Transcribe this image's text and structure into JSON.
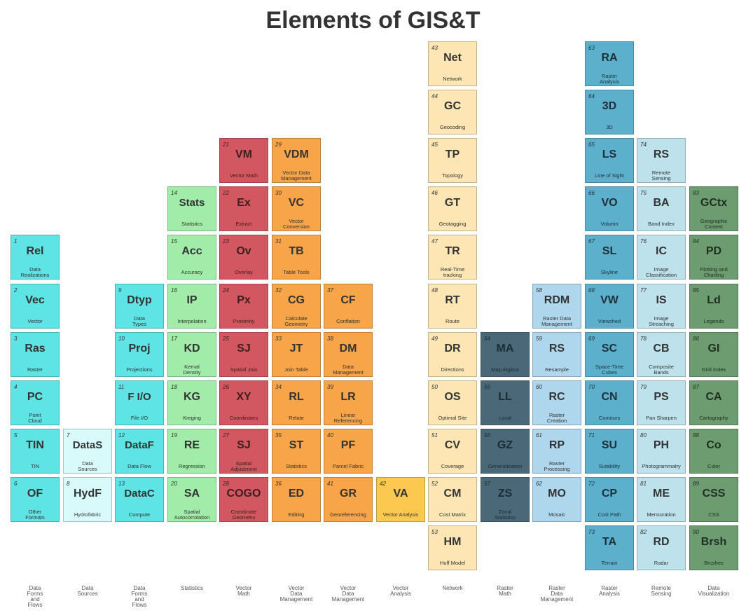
{
  "title": "Elements of GIS&T",
  "columns": [
    {
      "label": "Data\nForms\nand\nFlows",
      "color": "#5ee4e4",
      "text": "#333333",
      "start_row": 4,
      "tiles": [
        {
          "num": "1",
          "sym": "Rel",
          "name": "Data\nRealizations"
        },
        {
          "num": "2",
          "sym": "Vec",
          "name": "Vector"
        },
        {
          "num": "3",
          "sym": "Ras",
          "name": "Raster"
        },
        {
          "num": "4",
          "sym": "PC",
          "name": "Point\nCloud"
        },
        {
          "num": "5",
          "sym": "TIN",
          "name": "TIN"
        },
        {
          "num": "6",
          "sym": "OF",
          "name": "Other\nFormats"
        }
      ]
    },
    {
      "label": "Data\nSources",
      "color": "#d9fafa",
      "text": "#333333",
      "start_row": 8,
      "tiles": [
        {
          "num": "7",
          "sym": "DataS",
          "name": "Data\nSources"
        },
        {
          "num": "8",
          "sym": "HydF",
          "name": "Hydrofabric"
        }
      ]
    },
    {
      "label": "Data\nForms\nand\nFlows",
      "color": "#5ee4e4",
      "text": "#333333",
      "start_row": 5,
      "tiles": [
        {
          "num": "9",
          "sym": "Dtyp",
          "name": "Data\nTypes"
        },
        {
          "num": "10",
          "sym": "Proj",
          "name": "Projections"
        },
        {
          "num": "11",
          "sym": "F I/O",
          "name": "File I/O"
        },
        {
          "num": "12",
          "sym": "DataF",
          "name": "Data Flow"
        },
        {
          "num": "13",
          "sym": "DataC",
          "name": "Compute"
        }
      ]
    },
    {
      "label": "Statistics",
      "color": "#a0eca8",
      "text": "#333333",
      "start_row": 3,
      "tiles": [
        {
          "num": "14",
          "sym": "Stats",
          "name": "Statistics"
        },
        {
          "num": "15",
          "sym": "Acc",
          "name": "Accuracy"
        },
        {
          "num": "16",
          "sym": "IP",
          "name": "Interpolation"
        },
        {
          "num": "17",
          "sym": "KD",
          "name": "Kernal\nDensity"
        },
        {
          "num": "18",
          "sym": "KG",
          "name": "Kreging"
        },
        {
          "num": "19",
          "sym": "RE",
          "name": "Regression"
        },
        {
          "num": "20",
          "sym": "SA",
          "name": "Spatial\nAutocorrolation"
        }
      ]
    },
    {
      "label": "Vector\nMath",
      "color": "#d35760",
      "text": "#3a2020",
      "start_row": 2,
      "tiles": [
        {
          "num": "21",
          "sym": "VM",
          "name": "Vector Math"
        },
        {
          "num": "22",
          "sym": "Ex",
          "name": "Extract"
        },
        {
          "num": "23",
          "sym": "Ov",
          "name": "Overlay"
        },
        {
          "num": "24",
          "sym": "Px",
          "name": "Proximity"
        },
        {
          "num": "25",
          "sym": "SJ",
          "name": "Spatial Join"
        },
        {
          "num": "26",
          "sym": "XY",
          "name": "Coordinates"
        },
        {
          "num": "27",
          "sym": "SJ",
          "name": "Spatial\nAdjustment"
        },
        {
          "num": "28",
          "sym": "COGO",
          "name": "Coordinate\nGeometry"
        }
      ]
    },
    {
      "label": "Vector\nData\nManagement",
      "color": "#f8a448",
      "text": "#333333",
      "start_row": 2,
      "tiles": [
        {
          "num": "29",
          "sym": "VDM",
          "name": "Vector Data\nManagement"
        },
        {
          "num": "30",
          "sym": "VC",
          "name": "Vector\nConversion"
        },
        {
          "num": "31",
          "sym": "TB",
          "name": "Table Tools"
        },
        {
          "num": "32",
          "sym": "CG",
          "name": "Calculate\nGeometry"
        },
        {
          "num": "33",
          "sym": "JT",
          "name": "Join Table"
        },
        {
          "num": "34",
          "sym": "RL",
          "name": "Relate"
        },
        {
          "num": "35",
          "sym": "ST",
          "name": "Statistics"
        },
        {
          "num": "36",
          "sym": "ED",
          "name": "Editing"
        }
      ]
    },
    {
      "label": "Vector\nData\nManagement",
      "color": "#f8a448",
      "text": "#333333",
      "start_row": 5,
      "tiles": [
        {
          "num": "37",
          "sym": "CF",
          "name": "Conflation"
        },
        {
          "num": "38",
          "sym": "DM",
          "name": "Data\nManagement"
        },
        {
          "num": "39",
          "sym": "LR",
          "name": "Linear\nReferencing"
        },
        {
          "num": "40",
          "sym": "PF",
          "name": "Parcel Fabric"
        },
        {
          "num": "41",
          "sym": "GR",
          "name": "Georeferencing"
        }
      ]
    },
    {
      "label": "Vector\nAnalysis",
      "color": "#fcc850",
      "text": "#333333",
      "start_row": 9,
      "tiles": [
        {
          "num": "42",
          "sym": "VA",
          "name": "Vector Analysis"
        }
      ]
    },
    {
      "label": "Network",
      "color": "#fde6b4",
      "text": "#333333",
      "start_row": 0,
      "tiles": [
        {
          "num": "43",
          "sym": "Net",
          "name": "Network"
        },
        {
          "num": "44",
          "sym": "GC",
          "name": "Geocoding"
        },
        {
          "num": "45",
          "sym": "TP",
          "name": "Topology"
        },
        {
          "num": "46",
          "sym": "GT",
          "name": "Geotagging"
        },
        {
          "num": "47",
          "sym": "TR",
          "name": "Real-Time\ntracking"
        },
        {
          "num": "48",
          "sym": "RT",
          "name": "Route"
        },
        {
          "num": "49",
          "sym": "DR",
          "name": "Directions"
        },
        {
          "num": "50",
          "sym": "OS",
          "name": "Optimal Site"
        },
        {
          "num": "51",
          "sym": "CV",
          "name": "Coverage"
        },
        {
          "num": "52",
          "sym": "CM",
          "name": "Cost Matrix"
        },
        {
          "num": "53",
          "sym": "HM",
          "name": "Huff Model"
        }
      ]
    },
    {
      "label": "Raster\nMath",
      "color": "#4a6878",
      "text": "#1c2c36",
      "start_row": 6,
      "tiles": [
        {
          "num": "54",
          "sym": "MA",
          "name": "Map Algibra"
        },
        {
          "num": "55",
          "sym": "LL",
          "name": "Local"
        },
        {
          "num": "56",
          "sym": "GZ",
          "name": "Generalization"
        },
        {
          "num": "57",
          "sym": "ZS",
          "name": "Zonal\nStatistics"
        }
      ]
    },
    {
      "label": "Raster\nData\nManagement",
      "color": "#aed6ec",
      "text": "#333333",
      "start_row": 5,
      "tiles": [
        {
          "num": "58",
          "sym": "RDM",
          "name": "Raster Data\nManagement"
        },
        {
          "num": "59",
          "sym": "RS",
          "name": "Resample"
        },
        {
          "num": "60",
          "sym": "RC",
          "name": "Raster\nCreation"
        },
        {
          "num": "61",
          "sym": "RP",
          "name": "Raster\nProcessing"
        },
        {
          "num": "62",
          "sym": "MO",
          "name": "Mosaic"
        }
      ]
    },
    {
      "label": "Raster\nAnalysis",
      "color": "#5cb0cc",
      "text": "#1f2f38",
      "start_row": 0,
      "tiles": [
        {
          "num": "63",
          "sym": "RA",
          "name": "Raster\nAnalysis"
        },
        {
          "num": "64",
          "sym": "3D",
          "name": "3D"
        },
        {
          "num": "65",
          "sym": "LS",
          "name": "Line of Sight"
        },
        {
          "num": "66",
          "sym": "VO",
          "name": "Volumn"
        },
        {
          "num": "67",
          "sym": "SL",
          "name": "Skyline"
        },
        {
          "num": "68",
          "sym": "VW",
          "name": "Viewshed"
        },
        {
          "num": "69",
          "sym": "SC",
          "name": "Space-Time\nCubes"
        },
        {
          "num": "70",
          "sym": "CN",
          "name": "Contours"
        },
        {
          "num": "71",
          "sym": "SU",
          "name": "Sutability"
        },
        {
          "num": "72",
          "sym": "CP",
          "name": "Cost Path"
        },
        {
          "num": "73",
          "sym": "TA",
          "name": "Terrain"
        }
      ]
    },
    {
      "label": "Remote\nSensing",
      "color": "#bde2ec",
      "text": "#333333",
      "start_row": 2,
      "tiles": [
        {
          "num": "74",
          "sym": "RS",
          "name": "Remote\nSensing"
        },
        {
          "num": "75",
          "sym": "BA",
          "name": "Band Index"
        },
        {
          "num": "76",
          "sym": "IC",
          "name": "Image\nClassification"
        },
        {
          "num": "77",
          "sym": "IS",
          "name": "Image\nStreaching"
        },
        {
          "num": "78",
          "sym": "CB",
          "name": "Composite\nBands"
        },
        {
          "num": "79",
          "sym": "PS",
          "name": "Pan Sharpen"
        },
        {
          "num": "80",
          "sym": "PH",
          "name": "Photogrammatry"
        },
        {
          "num": "81",
          "sym": "ME",
          "name": "Mensuration"
        },
        {
          "num": "82",
          "sym": "RD",
          "name": "Radar"
        }
      ]
    },
    {
      "label": "Data\nVisualization",
      "color": "#6c9c70",
      "text": "#1e2e20",
      "start_row": 3,
      "tiles": [
        {
          "num": "83",
          "sym": "GCtx",
          "name": "Geographic\nContext"
        },
        {
          "num": "84",
          "sym": "PD",
          "name": "Plotting and\nCharting"
        },
        {
          "num": "85",
          "sym": "Ld",
          "name": "Legends"
        },
        {
          "num": "86",
          "sym": "GI",
          "name": "Grid Index"
        },
        {
          "num": "87",
          "sym": "CA",
          "name": "Cartography"
        },
        {
          "num": "88",
          "sym": "Co",
          "name": "Color"
        },
        {
          "num": "89",
          "sym": "CSS",
          "name": "CSS"
        },
        {
          "num": "90",
          "sym": "Brsh",
          "name": "Brushes"
        }
      ]
    }
  ]
}
